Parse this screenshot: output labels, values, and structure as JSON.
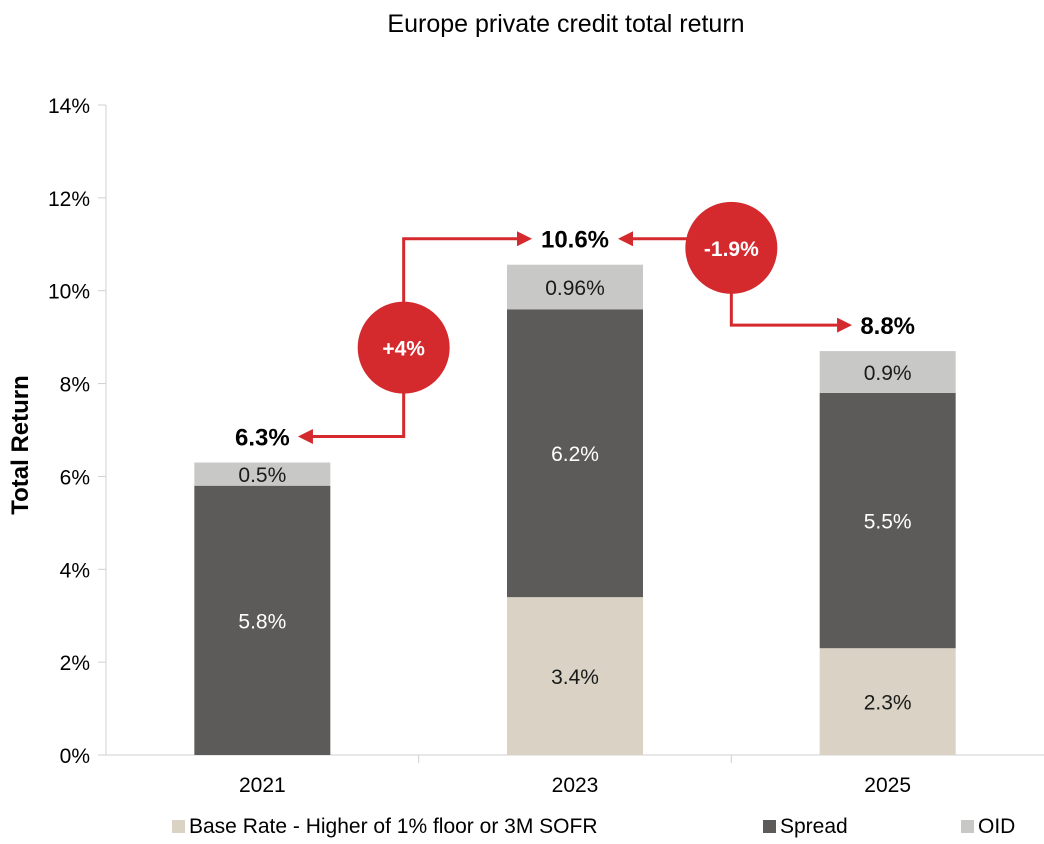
{
  "chart_data": {
    "type": "bar",
    "stacked": true,
    "title": "Europe private credit total return",
    "xlabel": "",
    "ylabel": "Total Return",
    "ylim": [
      0,
      14
    ],
    "yticks": [
      0,
      2,
      4,
      6,
      8,
      10,
      12,
      14
    ],
    "ytick_labels": [
      "0%",
      "2%",
      "4%",
      "6%",
      "8%",
      "10%",
      "12%",
      "14%"
    ],
    "categories": [
      "2021",
      "2023",
      "2025"
    ],
    "series": [
      {
        "name": "Base Rate - Higher of 1% floor or 3M SOFR",
        "color": "#d9d2c5",
        "label_color": "#1a1a1a",
        "values": [
          0,
          3.4,
          2.3
        ],
        "labels": [
          "",
          "3.4%",
          "2.3%"
        ]
      },
      {
        "name": "Spread",
        "color": "#5d5b59",
        "label_color": "#ffffff",
        "values": [
          5.8,
          6.2,
          5.5
        ],
        "labels": [
          "5.8%",
          "6.2%",
          "5.5%"
        ]
      },
      {
        "name": "OID",
        "color": "#c8c8c6",
        "label_color": "#1a1a1a",
        "values": [
          0.5,
          0.96,
          0.9
        ],
        "labels": [
          "0.5%",
          "0.96%",
          "0.9%"
        ]
      }
    ],
    "totals": [
      6.3,
      10.6,
      8.8
    ],
    "total_labels": [
      "6.3%",
      "10.6%",
      "8.8%"
    ],
    "annotations": [
      {
        "from": "2021",
        "to": "2023",
        "text": "+4%"
      },
      {
        "from": "2023",
        "to": "2025",
        "text": "-1.9%"
      }
    ],
    "annotation_color": "#d42a2e",
    "legend_position": "bottom",
    "grid": false
  }
}
